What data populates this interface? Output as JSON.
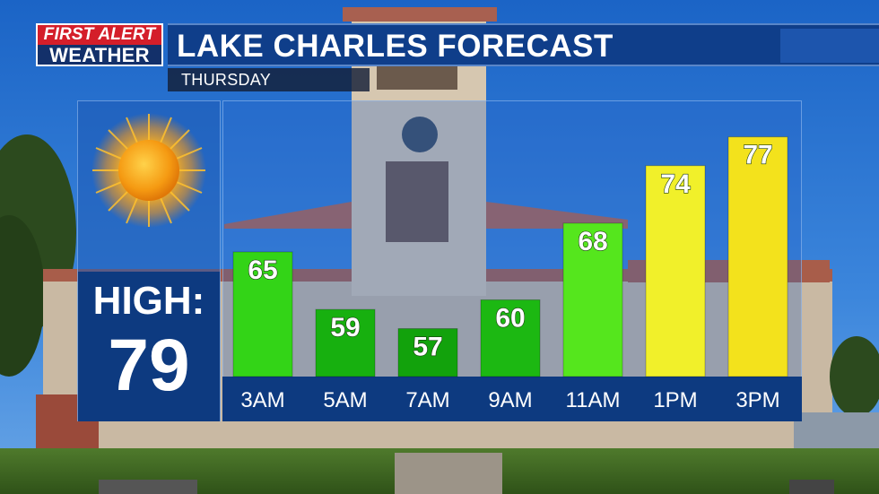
{
  "header": {
    "logo_line1": "FIRST ALERT",
    "logo_line2": "WEATHER",
    "title": "LAKE CHARLES FORECAST",
    "subtitle": "THURSDAY"
  },
  "summary": {
    "icon": "sun-icon",
    "high_label": "HIGH:",
    "high_value": "79"
  },
  "colors": {
    "brand_blue": "#0f3e8a",
    "brand_red": "#d41e2a",
    "cool_green": "#1fae12",
    "warm_yellow": "#f0e61a"
  },
  "chart_data": {
    "type": "bar",
    "title": "",
    "xlabel": "",
    "ylabel": "",
    "categories": [
      "3AM",
      "5AM",
      "7AM",
      "9AM",
      "11AM",
      "1PM",
      "3PM"
    ],
    "values": [
      65,
      59,
      57,
      60,
      68,
      74,
      77
    ],
    "bar_colors": [
      "#33d417",
      "#17b00f",
      "#12a20c",
      "#1cb812",
      "#55e61d",
      "#f1f02a",
      "#f3e21c"
    ],
    "ylim": [
      52,
      78
    ],
    "grid": false,
    "legend": "none",
    "data_labels": true
  }
}
